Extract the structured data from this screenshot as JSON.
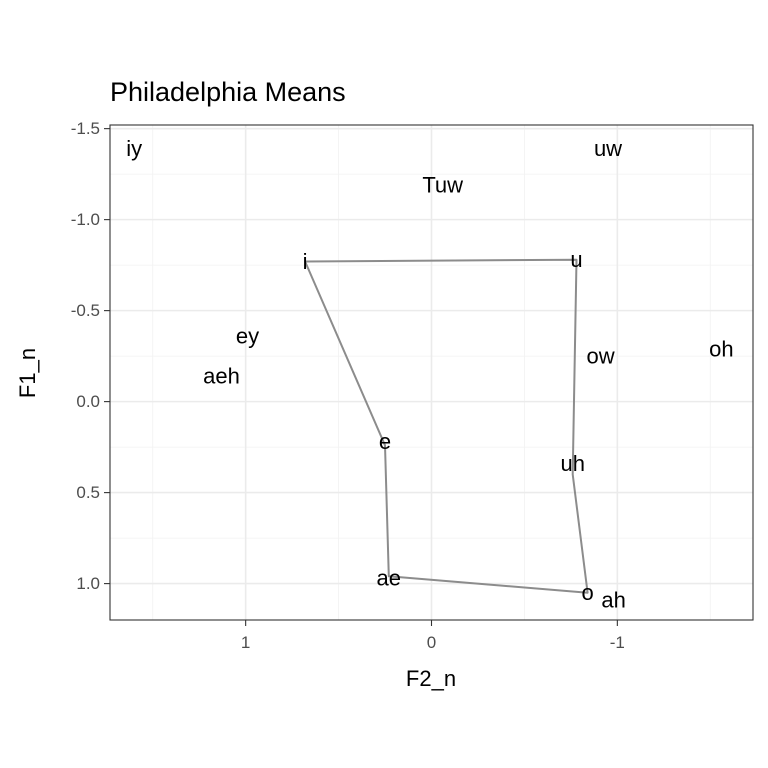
{
  "chart_data": {
    "type": "scatter",
    "title": "Philadelphia Means",
    "xlabel": "F2_n",
    "ylabel": "F1_n",
    "x_reversed": true,
    "y_reversed": true,
    "xlim": [
      1.73,
      -1.73
    ],
    "ylim": [
      -1.52,
      1.2
    ],
    "x_ticks": [
      1,
      0,
      -1
    ],
    "x_tick_labels": [
      "1",
      "0",
      "-1"
    ],
    "y_ticks": [
      -1.5,
      -1.0,
      -0.5,
      0.0,
      0.5,
      1.0
    ],
    "y_tick_labels": [
      "-1.5",
      "-1.0",
      "-0.5",
      "0.0",
      "0.5",
      "1.0"
    ],
    "grid": true,
    "points": [
      {
        "label": "iy",
        "x": 1.6,
        "y": -1.39
      },
      {
        "label": "uw",
        "x": -0.95,
        "y": -1.39
      },
      {
        "label": "Tuw",
        "x": -0.06,
        "y": -1.19
      },
      {
        "label": "i",
        "x": 0.68,
        "y": -0.77
      },
      {
        "label": "u",
        "x": -0.78,
        "y": -0.78
      },
      {
        "label": "ey",
        "x": 0.99,
        "y": -0.36
      },
      {
        "label": "ow",
        "x": -0.91,
        "y": -0.25
      },
      {
        "label": "oh",
        "x": -1.56,
        "y": -0.29
      },
      {
        "label": "aeh",
        "x": 1.13,
        "y": -0.14
      },
      {
        "label": "e",
        "x": 0.25,
        "y": 0.22
      },
      {
        "label": "uh",
        "x": -0.76,
        "y": 0.34
      },
      {
        "label": "ae",
        "x": 0.23,
        "y": 0.97
      },
      {
        "label": "o",
        "x": -0.84,
        "y": 1.05
      },
      {
        "label": "ah",
        "x": -0.98,
        "y": 1.09
      }
    ],
    "path": {
      "color": "#8c8c8c",
      "points": [
        {
          "x": 0.68,
          "y": -0.77
        },
        {
          "x": -0.78,
          "y": -0.78
        },
        {
          "x": -0.76,
          "y": 0.4
        },
        {
          "x": -0.84,
          "y": 1.05
        },
        {
          "x": 0.23,
          "y": 0.96
        },
        {
          "x": 0.25,
          "y": 0.24
        },
        {
          "x": 0.68,
          "y": -0.77
        }
      ]
    }
  }
}
